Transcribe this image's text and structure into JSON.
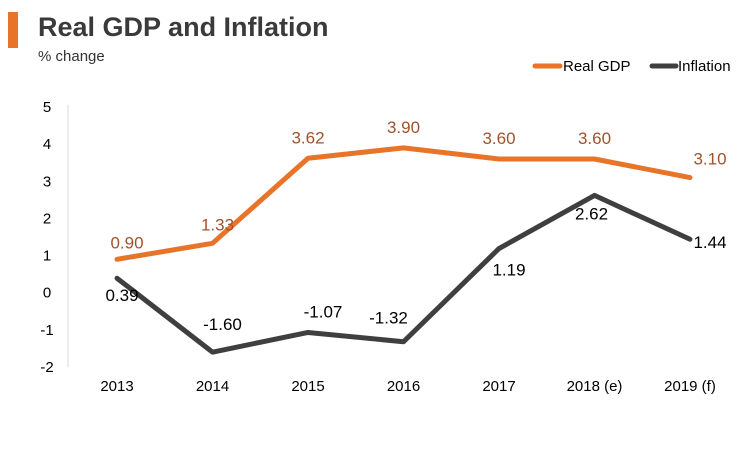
{
  "header": {
    "title": "Real GDP and Inflation",
    "subtitle": "% change"
  },
  "colors": {
    "accent": "#e8742a",
    "gdp": "#e8742a",
    "gdp_label": "#a0522d",
    "inflation": "#3f3f3f",
    "inflation_label": "#000000"
  },
  "chart_data": {
    "type": "line",
    "title": "Real GDP and Inflation",
    "ylabel": "% change",
    "xlabel": "",
    "categories": [
      "2013",
      "2014",
      "2015",
      "2016",
      "2017",
      "2018 (e)",
      "2019 (f)"
    ],
    "ylim": [
      -2,
      5
    ],
    "yticks": [
      "5",
      "4",
      "3",
      "2",
      "1",
      "0",
      "-1",
      "-2"
    ],
    "legend_position": "top-right",
    "series": [
      {
        "name": "Real GDP",
        "values": [
          0.9,
          1.33,
          3.62,
          3.9,
          3.6,
          3.6,
          3.1
        ],
        "labels": [
          "0.90",
          "1.33",
          "3.62",
          "3.90",
          "3.60",
          "3.60",
          "3.10"
        ]
      },
      {
        "name": "Inflation",
        "values": [
          0.39,
          -1.6,
          -1.07,
          -1.32,
          1.19,
          2.62,
          1.44
        ],
        "labels": [
          "0.39",
          "-1.60",
          "-1.07",
          "-1.32",
          "1.19",
          "2.62",
          "1.44"
        ]
      }
    ]
  }
}
